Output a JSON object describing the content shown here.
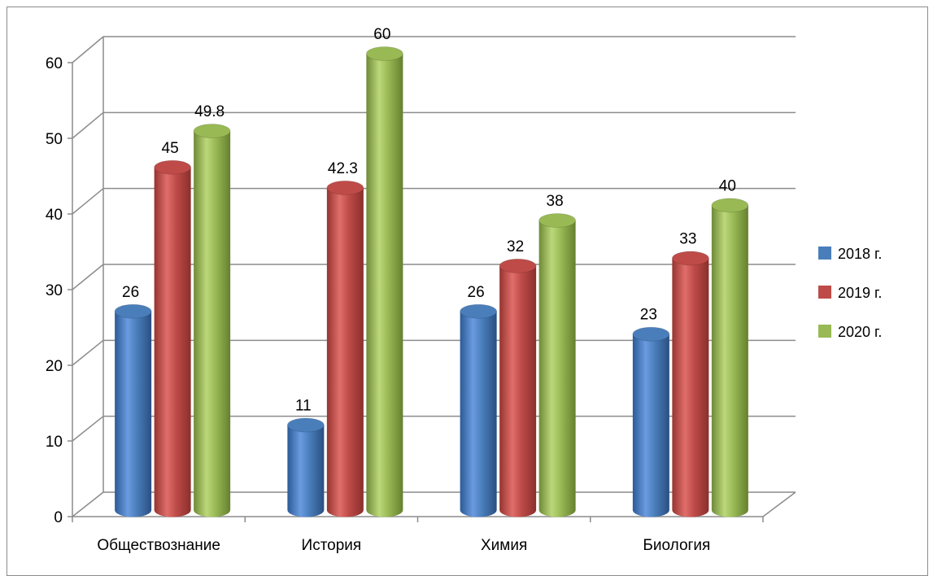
{
  "chart_data": {
    "type": "bar",
    "style": "3d-cylinder",
    "categories": [
      "Обществознание",
      "История",
      "Химия",
      "Биология"
    ],
    "series": [
      {
        "name": "2018 г.",
        "color": "#4a7ebb",
        "values": [
          26,
          11,
          26,
          23
        ]
      },
      {
        "name": "2019 г.",
        "color": "#be4b48",
        "values": [
          45,
          42.3,
          32,
          33
        ]
      },
      {
        "name": "2020 г.",
        "color": "#98b954",
        "values": [
          49.8,
          60,
          38,
          40
        ]
      }
    ],
    "y_ticks": [
      "0",
      "10",
      "20",
      "30",
      "40",
      "50",
      "60"
    ],
    "ylim": [
      0,
      60
    ],
    "grid": true,
    "legend_position": "right",
    "title": "",
    "xlabel": "",
    "ylabel": ""
  }
}
